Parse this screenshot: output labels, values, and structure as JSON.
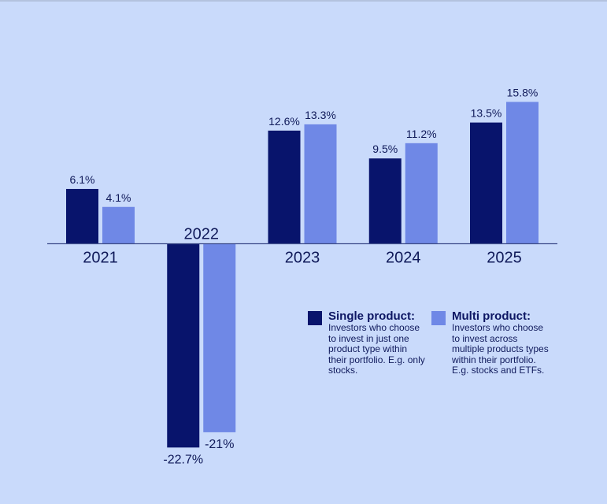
{
  "chart_data": {
    "type": "bar",
    "categories": [
      "2021",
      "2022",
      "2023",
      "2024",
      "2025"
    ],
    "series": [
      {
        "name": "Single product",
        "color": "#08146c",
        "values": [
          6.1,
          -22.7,
          12.6,
          9.5,
          13.5
        ],
        "labels": [
          "6.1%",
          "-22.7%",
          "12.6%",
          "9.5%",
          "13.5%"
        ]
      },
      {
        "name": "Multi product",
        "color": "#6f88e6",
        "values": [
          4.1,
          -21,
          13.3,
          11.2,
          15.8
        ],
        "labels": [
          "4.1%",
          "-21%",
          "13.3%",
          "11.2%",
          "15.8%"
        ]
      }
    ],
    "title": "",
    "xlabel": "",
    "ylabel": "",
    "ylim": [
      -22.7,
      15.8
    ],
    "axis_color": "#3d4c8a",
    "legend_position": "bottom-right"
  },
  "legend": [
    {
      "title": "Single product:",
      "description": "Investors who choose to invest in just one product type within their portfolio. E.g. only stocks."
    },
    {
      "title": "Multi product:",
      "description": "Investors who choose to invest across multiple products types within their portfolio. E.g. stocks and ETFs."
    }
  ]
}
